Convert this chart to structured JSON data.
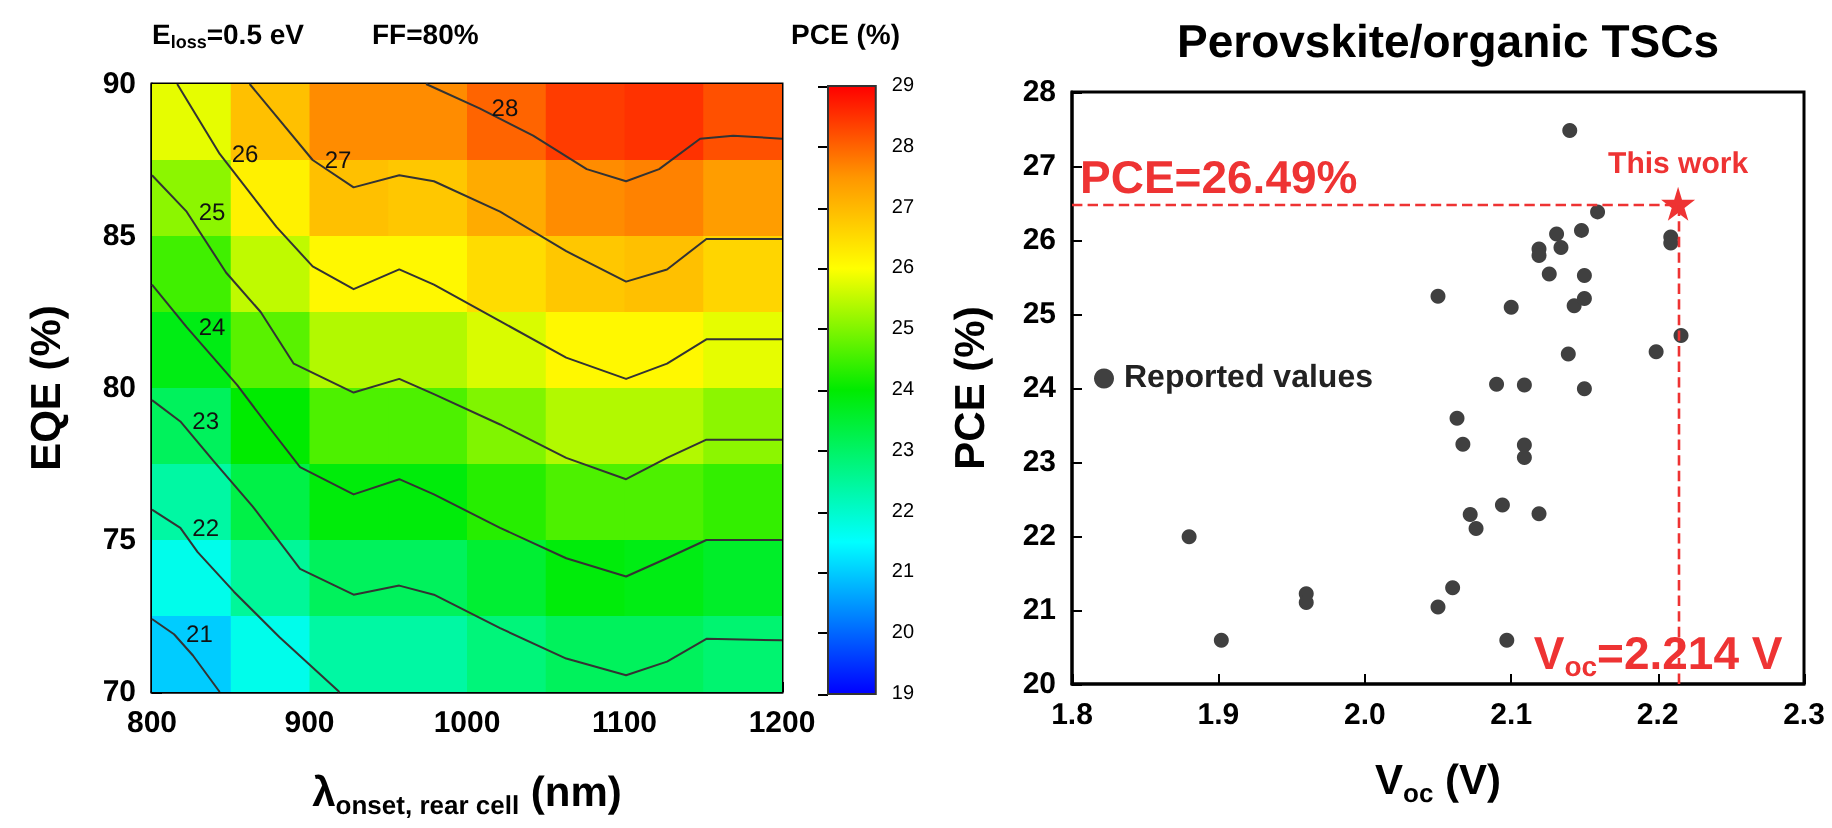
{
  "chart_data": [
    {
      "type": "heatmap",
      "annotations": [
        "E$_{loss}$=0.5 eV",
        "FF=80%"
      ],
      "xlabel": "λ$_{onset, rear cell}$ (nm)",
      "ylabel": "EQE (%)",
      "clabel": "PCE (%)",
      "xlim": [
        800,
        1200
      ],
      "xticks": [
        800,
        900,
        1000,
        1100,
        1200
      ],
      "ylim": [
        70,
        90
      ],
      "yticks": [
        70,
        75,
        80,
        85,
        90
      ],
      "clim": [
        19,
        29
      ],
      "cticks": [
        19,
        20,
        21,
        22,
        23,
        24,
        25,
        26,
        27,
        28,
        29
      ],
      "x": [
        825,
        875,
        925,
        975,
        1025,
        1075,
        1125,
        1175
      ],
      "y": [
        88.75,
        86.25,
        83.75,
        81.25,
        78.75,
        76.25,
        73.75,
        71.25
      ],
      "cells": [
        [
          25.8,
          26.9,
          27.6,
          27.6,
          28.0,
          28.4,
          28.5,
          28.2
        ],
        [
          25.1,
          26.2,
          26.9,
          26.8,
          27.2,
          27.6,
          27.7,
          27.4
        ],
        [
          24.5,
          25.5,
          26.1,
          26.1,
          26.5,
          26.8,
          26.9,
          26.6
        ],
        [
          23.8,
          24.7,
          25.4,
          25.4,
          25.7,
          26.1,
          26.1,
          25.8
        ],
        [
          23.1,
          24.0,
          24.6,
          24.6,
          25.0,
          25.4,
          25.4,
          25.1
        ],
        [
          22.4,
          23.3,
          23.9,
          23.9,
          24.3,
          24.6,
          24.6,
          24.4
        ],
        [
          21.7,
          22.5,
          23.1,
          23.1,
          23.5,
          23.9,
          23.8,
          23.6
        ],
        [
          21.0,
          21.7,
          22.4,
          22.4,
          22.8,
          23.1,
          23.1,
          22.9
        ]
      ],
      "series": [
        {
          "name": "28",
          "type": "line",
          "color": "#333333",
          "x": [
            974,
            1008,
            1042,
            1076,
            1101,
            1122,
            1148,
            1169,
            1200
          ],
          "values": [
            90,
            89.2,
            88.3,
            87.2,
            86.8,
            87.2,
            88.2,
            88.3,
            88.2
          ]
        },
        {
          "name": "27",
          "type": "line",
          "color": "#333333",
          "x": [
            862,
            902,
            928,
            957,
            979,
            1021,
            1063,
            1101,
            1127,
            1152,
            1200
          ],
          "values": [
            90,
            87.5,
            86.6,
            87.0,
            86.8,
            85.8,
            84.5,
            83.5,
            83.9,
            84.9,
            84.9
          ]
        },
        {
          "name": "26",
          "type": "line",
          "color": "#333333",
          "x": [
            816,
            843,
            879,
            902,
            928,
            957,
            979,
            1021,
            1063,
            1101,
            1127,
            1152,
            1200
          ],
          "values": [
            90,
            87.7,
            85.3,
            84.0,
            83.25,
            83.9,
            83.4,
            82.2,
            81.0,
            80.3,
            80.8,
            81.6,
            81.6
          ]
        },
        {
          "name": "25",
          "type": "line",
          "color": "#333333",
          "x": [
            800,
            822,
            847,
            869,
            890,
            928,
            957,
            979,
            1021,
            1063,
            1101,
            1127,
            1152,
            1200
          ],
          "values": [
            87.0,
            85.8,
            83.8,
            82.5,
            80.8,
            79.85,
            80.3,
            79.8,
            78.8,
            77.7,
            77.0,
            77.7,
            78.3,
            78.3
          ]
        },
        {
          "name": "24",
          "type": "line",
          "color": "#333333",
          "x": [
            800,
            822,
            854,
            873,
            894,
            928,
            957,
            979,
            1021,
            1063,
            1101,
            1127,
            1152,
            1200
          ],
          "values": [
            83.4,
            82.0,
            80.1,
            78.8,
            77.4,
            76.5,
            77.0,
            76.5,
            75.4,
            74.4,
            73.8,
            74.4,
            75.0,
            75.0
          ]
        },
        {
          "name": "23",
          "type": "line",
          "color": "#333333",
          "x": [
            800,
            818,
            839,
            864,
            894,
            928,
            957,
            979,
            1021,
            1063,
            1101,
            1127,
            1152,
            1200
          ],
          "values": [
            79.6,
            78.9,
            77.6,
            76.1,
            74.05,
            73.2,
            73.5,
            73.2,
            72.1,
            71.1,
            70.55,
            71.0,
            71.75,
            71.7
          ]
        },
        {
          "name": "22",
          "type": "line",
          "color": "#333333",
          "x": [
            800,
            818,
            829,
            852,
            881,
            919
          ],
          "values": [
            76.0,
            75.4,
            74.6,
            73.3,
            71.8,
            70
          ]
        },
        {
          "name": "21",
          "type": "line",
          "color": "#333333",
          "x": [
            800,
            814,
            826,
            843
          ],
          "values": [
            72.4,
            71.9,
            71.2,
            70
          ]
        }
      ]
    },
    {
      "type": "scatter",
      "title": "Perovskite/organic TSCs",
      "xlabel": "V$_{oc}$ (V)",
      "ylabel": "PCE (%)",
      "xlim": [
        1.8,
        2.3
      ],
      "xticks": [
        1.8,
        1.9,
        {
          "value": 2,
          "label": "2.0"
        },
        2.1,
        2.2,
        2.3
      ],
      "ylim": [
        20,
        28
      ],
      "yticks": [
        20,
        21,
        22,
        23,
        24,
        25,
        26,
        27,
        28
      ],
      "legend": "left",
      "series": [
        {
          "name": "Reported values",
          "color": "#404040",
          "marker": "circle",
          "x": [
            2.05,
            2.1,
            2.14,
            2.159,
            2.131,
            2.148,
            2.119,
            2.119,
            2.134,
            2.126,
            2.15,
            2.143,
            2.15,
            2.209,
            2.209,
            2.216,
            2.199,
            2.139,
            2.09,
            2.109,
            2.15,
            2.063,
            2.067,
            2.109,
            2.109,
            2.094,
            2.119,
            2.072,
            2.076,
            1.88,
            1.96,
            1.96,
            2.06,
            2.05,
            1.902,
            2.097
          ],
          "values": [
            25.24,
            25.09,
            27.48,
            26.38,
            26.08,
            26.13,
            25.88,
            25.79,
            25.9,
            25.54,
            25.52,
            25.11,
            25.21,
            26.04,
            25.96,
            24.71,
            24.49,
            24.46,
            24.05,
            24.04,
            23.99,
            23.59,
            23.24,
            23.23,
            23.06,
            22.42,
            22.3,
            22.29,
            22.1,
            21.99,
            21.22,
            21.1,
            21.3,
            21.04,
            20.59,
            20.59
          ]
        },
        {
          "name": "This work",
          "color": "#ee3333",
          "marker": "star",
          "x": [
            2.214
          ],
          "values": [
            26.49
          ]
        }
      ],
      "ref_lines": [
        {
          "axis": "y",
          "value": 26.49,
          "label": "PCE=26.49%",
          "color": "#ee3333",
          "line_style": "dashed"
        },
        {
          "axis": "x",
          "value": 2.214,
          "label": "V$_{oc}$=2.214 V",
          "color": "#ee3333",
          "line_style": "dashed"
        }
      ]
    }
  ]
}
